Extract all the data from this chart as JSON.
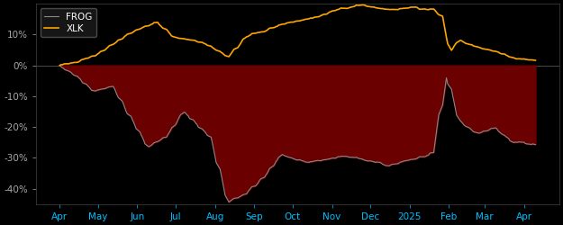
{
  "background_color": "#000000",
  "plot_bg_color": "#000000",
  "fill_color": "#6B0000",
  "frog_color": "#888888",
  "xlk_color": "#FFA500",
  "legend_frog": "FROG",
  "legend_xlk": "XLK",
  "ylim": [
    -0.45,
    0.2
  ],
  "yticks": [
    -0.4,
    -0.3,
    -0.2,
    -0.1,
    0.0,
    0.1
  ],
  "ytick_labels": [
    "-40%",
    "-30%",
    "-20%",
    "-10%",
    "0%",
    "10%"
  ],
  "xlabel_color": "#00BFFF",
  "tick_color": "#aaaaaa",
  "spine_color": "#444444",
  "legend_bg": "#1a1a1a",
  "legend_edge": "#555555",
  "legend_text_color": "#ffffff",
  "title": ""
}
